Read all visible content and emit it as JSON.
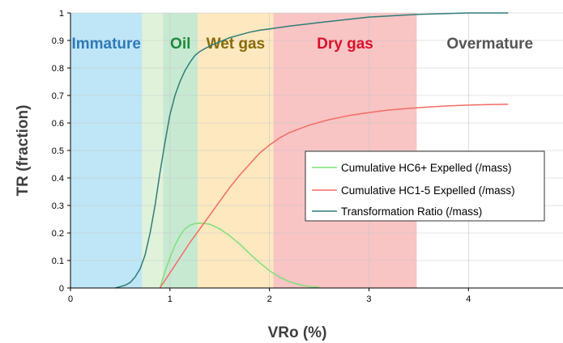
{
  "chart_data": {
    "type": "line",
    "xlabel": "VRo (%)",
    "ylabel": "TR (fraction)",
    "xlim": [
      0,
      4.95
    ],
    "ylim": [
      0,
      1
    ],
    "x_ticks": [
      "0",
      "1",
      "2",
      "3",
      "4"
    ],
    "y_ticks": [
      "0",
      "0.1",
      "0.2",
      "0.3",
      "0.4",
      "0.5",
      "0.6",
      "0.7",
      "0.8",
      "0.9",
      "1"
    ],
    "grid": true,
    "legend_position": "center-right",
    "zones": [
      {
        "label": "Immature",
        "from": 0,
        "to": 0.72,
        "color": "#bfe6f6",
        "label_color": "#2e7ab8"
      },
      {
        "label": "",
        "from": 0.72,
        "to": 0.93,
        "color": "#e1f2da",
        "label_color": ""
      },
      {
        "label": "Oil",
        "from": 0.93,
        "to": 1.28,
        "color": "#c7e9d2",
        "label_color": "#1e8a3a"
      },
      {
        "label": "Wet gas",
        "from": 1.28,
        "to": 2.04,
        "color": "#fde8c0",
        "label_color": "#8a6a07"
      },
      {
        "label": "Dry gas",
        "from": 2.04,
        "to": 3.48,
        "color": "#f8c4c4",
        "label_color": "#d8122a"
      },
      {
        "label": "Overmature",
        "from": 3.48,
        "to": 4.95,
        "color": "#ffffff",
        "label_color": "#555555"
      }
    ],
    "series": [
      {
        "name": "Cumulative HC6+ Expelled (/mass)",
        "color": "#7fe07a",
        "x": [
          0.9,
          0.95,
          1.0,
          1.05,
          1.1,
          1.15,
          1.2,
          1.25,
          1.3,
          1.4,
          1.5,
          1.6,
          1.7,
          1.8,
          1.9,
          2.0,
          2.1,
          2.2,
          2.3,
          2.4,
          2.5
        ],
        "y": [
          0,
          0.06,
          0.11,
          0.155,
          0.19,
          0.215,
          0.228,
          0.234,
          0.236,
          0.232,
          0.215,
          0.19,
          0.16,
          0.125,
          0.092,
          0.063,
          0.04,
          0.023,
          0.012,
          0.005,
          0.002
        ]
      },
      {
        "name": "Cumulative HC1-5 Expelled (/mass)",
        "color": "#f26c64",
        "x": [
          0.9,
          1.0,
          1.1,
          1.2,
          1.3,
          1.4,
          1.5,
          1.6,
          1.7,
          1.8,
          1.9,
          2.0,
          2.1,
          2.2,
          2.4,
          2.6,
          2.8,
          3.0,
          3.2,
          3.4,
          3.6,
          3.8,
          4.0,
          4.2,
          4.4
        ],
        "y": [
          0,
          0.055,
          0.11,
          0.165,
          0.215,
          0.265,
          0.315,
          0.365,
          0.41,
          0.45,
          0.49,
          0.52,
          0.545,
          0.565,
          0.592,
          0.612,
          0.627,
          0.638,
          0.647,
          0.653,
          0.658,
          0.662,
          0.665,
          0.667,
          0.668
        ]
      },
      {
        "name": "Transformation Ratio (/mass)",
        "color": "#2e7d77",
        "x": [
          0.45,
          0.5,
          0.55,
          0.6,
          0.65,
          0.7,
          0.75,
          0.8,
          0.85,
          0.9,
          0.95,
          1.0,
          1.05,
          1.1,
          1.15,
          1.2,
          1.25,
          1.3,
          1.4,
          1.5,
          1.6,
          1.7,
          1.8,
          1.9,
          2.0,
          2.2,
          2.5,
          3.0,
          3.5,
          4.0,
          4.4
        ],
        "y": [
          0,
          0.005,
          0.01,
          0.02,
          0.04,
          0.07,
          0.12,
          0.2,
          0.3,
          0.42,
          0.53,
          0.63,
          0.7,
          0.75,
          0.79,
          0.82,
          0.845,
          0.86,
          0.88,
          0.895,
          0.91,
          0.92,
          0.93,
          0.937,
          0.942,
          0.952,
          0.965,
          0.985,
          0.995,
          1.0,
          1.0
        ]
      }
    ]
  }
}
